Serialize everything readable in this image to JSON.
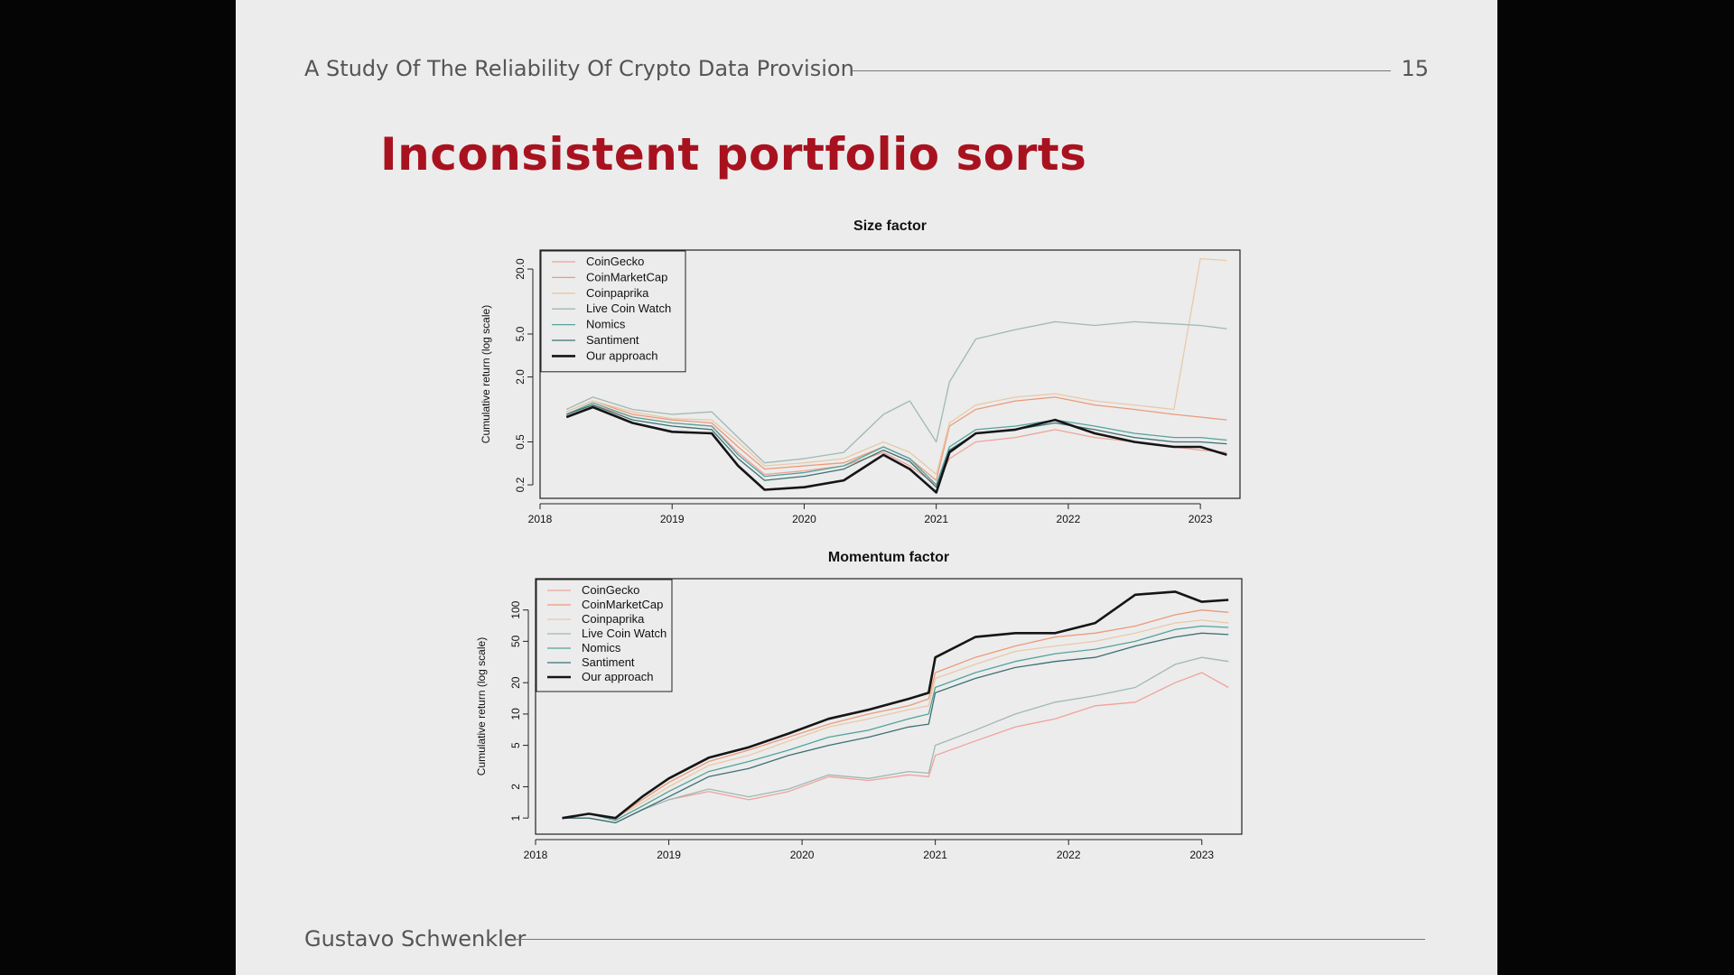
{
  "header": {
    "title": "A Study Of The Reliability Of Crypto Data Provision",
    "page_number": "15"
  },
  "slide_title": "Inconsistent portfolio sorts",
  "footer": {
    "author": "Gustavo Schwenkler"
  },
  "colors": {
    "title": "#a8121f",
    "CoinGecko": "#f0a29a",
    "CoinMarketCap": "#ec9a78",
    "Coinpaprika": "#e9c9a8",
    "Live Coin Watch": "#9fb9b4",
    "Nomics": "#54a39a",
    "Santiment": "#3d6f74",
    "Our approach": "#151515"
  },
  "chart_data": [
    {
      "type": "line",
      "title": "Size factor",
      "ylabel": "Cumulative return (log scale)",
      "xlabel": "",
      "log_y": true,
      "xlim": [
        2018.0,
        2023.3
      ],
      "ylim": [
        0.15,
        30
      ],
      "xticks": [
        "2018",
        "2019",
        "2020",
        "2021",
        "2022",
        "2023"
      ],
      "yticks": [
        "0.2",
        "0.5",
        "2.0",
        "5.0",
        "20.0"
      ],
      "legend_position": "top-left",
      "x": [
        2018.2,
        2018.4,
        2018.7,
        2019.0,
        2019.3,
        2019.5,
        2019.7,
        2020.0,
        2020.3,
        2020.6,
        2020.8,
        2021.0,
        2021.1,
        2021.3,
        2021.6,
        2021.9,
        2022.2,
        2022.5,
        2022.8,
        2023.0,
        2023.2
      ],
      "series": [
        {
          "name": "CoinGecko",
          "values": [
            0.9,
            1.1,
            0.85,
            0.75,
            0.7,
            0.4,
            0.25,
            0.27,
            0.3,
            0.4,
            0.3,
            0.2,
            0.35,
            0.5,
            0.55,
            0.65,
            0.55,
            0.5,
            0.45,
            0.42,
            0.4
          ]
        },
        {
          "name": "CoinMarketCap",
          "values": [
            0.95,
            1.2,
            0.9,
            0.8,
            0.75,
            0.45,
            0.28,
            0.3,
            0.32,
            0.45,
            0.35,
            0.22,
            0.7,
            1.0,
            1.2,
            1.3,
            1.1,
            1.0,
            0.9,
            0.85,
            0.8
          ]
        },
        {
          "name": "Coinpaprika",
          "values": [
            0.95,
            1.2,
            0.95,
            0.82,
            0.8,
            0.5,
            0.3,
            0.32,
            0.35,
            0.5,
            0.4,
            0.25,
            0.75,
            1.1,
            1.3,
            1.4,
            1.2,
            1.1,
            1.0,
            25.0,
            24.0
          ]
        },
        {
          "name": "Live Coin Watch",
          "values": [
            1.0,
            1.3,
            1.0,
            0.9,
            0.95,
            0.55,
            0.32,
            0.35,
            0.4,
            0.9,
            1.2,
            0.5,
            1.8,
            4.5,
            5.5,
            6.5,
            6.0,
            6.5,
            6.2,
            6.0,
            5.6
          ]
        },
        {
          "name": "Nomics",
          "values": [
            0.9,
            1.15,
            0.85,
            0.75,
            0.7,
            0.38,
            0.24,
            0.26,
            0.3,
            0.45,
            0.35,
            0.2,
            0.45,
            0.65,
            0.7,
            0.8,
            0.7,
            0.6,
            0.55,
            0.55,
            0.52
          ]
        },
        {
          "name": "Santiment",
          "values": [
            0.9,
            1.1,
            0.8,
            0.7,
            0.65,
            0.35,
            0.22,
            0.24,
            0.28,
            0.42,
            0.33,
            0.19,
            0.42,
            0.6,
            0.65,
            0.75,
            0.65,
            0.55,
            0.5,
            0.5,
            0.48
          ]
        },
        {
          "name": "Our approach",
          "values": [
            0.85,
            1.05,
            0.75,
            0.62,
            0.6,
            0.3,
            0.18,
            0.19,
            0.22,
            0.38,
            0.28,
            0.17,
            0.4,
            0.6,
            0.65,
            0.8,
            0.6,
            0.5,
            0.45,
            0.45,
            0.38
          ]
        }
      ]
    },
    {
      "type": "line",
      "title": "Momentum factor",
      "ylabel": "Cumulative return (log scale)",
      "xlabel": "",
      "log_y": true,
      "xlim": [
        2018.0,
        2023.3
      ],
      "ylim": [
        0.7,
        200
      ],
      "xticks": [
        "2018",
        "2019",
        "2020",
        "2021",
        "2022",
        "2023"
      ],
      "yticks": [
        "1",
        "2",
        "5",
        "10",
        "20",
        "50",
        "100"
      ],
      "legend_position": "top-left",
      "x": [
        2018.2,
        2018.4,
        2018.6,
        2018.8,
        2019.0,
        2019.3,
        2019.6,
        2019.9,
        2020.2,
        2020.5,
        2020.8,
        2020.95,
        2021.0,
        2021.3,
        2021.6,
        2021.9,
        2022.2,
        2022.5,
        2022.8,
        2023.0,
        2023.2
      ],
      "series": [
        {
          "name": "CoinGecko",
          "values": [
            1.0,
            1.0,
            0.9,
            1.2,
            1.5,
            1.8,
            1.5,
            1.8,
            2.5,
            2.3,
            2.6,
            2.5,
            4.0,
            5.5,
            7.5,
            9.0,
            12.0,
            13.0,
            20.0,
            25.0,
            18.0
          ]
        },
        {
          "name": "CoinMarketCap",
          "values": [
            1.0,
            1.1,
            1.0,
            1.5,
            2.2,
            3.5,
            4.5,
            6.0,
            8.0,
            10.0,
            12.0,
            14.0,
            25.0,
            35.0,
            45.0,
            55.0,
            60.0,
            70.0,
            90.0,
            100.0,
            95.0
          ]
        },
        {
          "name": "Coinpaprika",
          "values": [
            1.0,
            1.1,
            1.0,
            1.4,
            2.0,
            3.2,
            4.0,
            5.5,
            7.5,
            9.0,
            11.0,
            12.0,
            22.0,
            30.0,
            40.0,
            45.0,
            50.0,
            60.0,
            75.0,
            80.0,
            75.0
          ]
        },
        {
          "name": "Live Coin Watch",
          "values": [
            1.0,
            1.0,
            0.9,
            1.2,
            1.5,
            1.9,
            1.6,
            1.9,
            2.6,
            2.4,
            2.8,
            2.7,
            5.0,
            7.0,
            10.0,
            13.0,
            15.0,
            18.0,
            30.0,
            35.0,
            32.0
          ]
        },
        {
          "name": "Nomics",
          "values": [
            1.0,
            1.1,
            0.95,
            1.3,
            1.8,
            2.8,
            3.5,
            4.5,
            6.0,
            7.0,
            9.0,
            10.0,
            18.0,
            25.0,
            32.0,
            38.0,
            42.0,
            50.0,
            65.0,
            70.0,
            68.0
          ]
        },
        {
          "name": "Santiment",
          "values": [
            1.0,
            1.0,
            0.9,
            1.2,
            1.6,
            2.5,
            3.0,
            4.0,
            5.0,
            6.0,
            7.5,
            8.0,
            16.0,
            22.0,
            28.0,
            32.0,
            35.0,
            45.0,
            55.0,
            60.0,
            58.0
          ]
        },
        {
          "name": "Our approach",
          "values": [
            1.0,
            1.1,
            1.0,
            1.6,
            2.4,
            3.8,
            4.8,
            6.5,
            9.0,
            11.0,
            14.0,
            16.0,
            35.0,
            55.0,
            60.0,
            60.0,
            75.0,
            140.0,
            150.0,
            120.0,
            125.0
          ]
        }
      ]
    }
  ]
}
